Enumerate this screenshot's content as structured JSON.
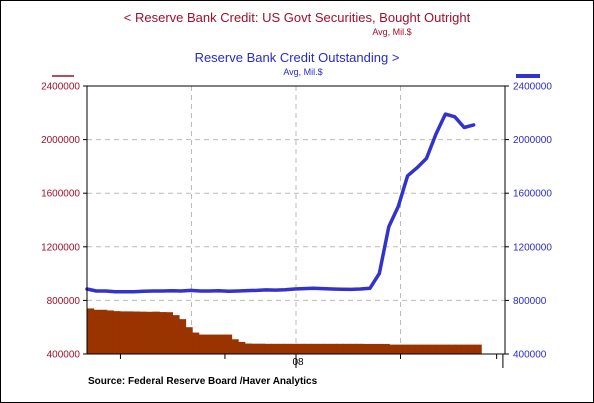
{
  "chart_data": {
    "type": "bar+line",
    "titles": {
      "left_title": "<  Reserve Bank Credit: US Govt Securities, Bought Outright",
      "left_units": "Avg, Mil.$",
      "right_title": "Reserve Bank Credit Outstanding  >",
      "right_units": "Avg, Mil.$"
    },
    "y_axis": {
      "min": 400000,
      "max": 2400000,
      "ticks": [
        400000,
        800000,
        1200000,
        1600000,
        2000000,
        2400000
      ],
      "tick_labels": [
        "400000",
        "800000",
        "1200000",
        "1600000",
        "2000000",
        "2400000"
      ]
    },
    "x_axis": {
      "label_text": "08",
      "label_position": 0.5
    },
    "grid": true,
    "series": [
      {
        "name": "Reserve Bank Credit: US Govt Securities, Bought Outright",
        "axis": "left",
        "type": "bar",
        "color": "#993300",
        "values": [
          740000,
          730000,
          730000,
          725000,
          720000,
          718000,
          718000,
          717000,
          716000,
          715000,
          716000,
          713000,
          712000,
          690000,
          660000,
          600000,
          560000,
          545000,
          545000,
          545000,
          545000,
          545000,
          510000,
          490000,
          478000,
          477000,
          477000,
          476000,
          476000,
          476000,
          476000,
          476000,
          476000,
          476000,
          476000,
          476000,
          476000,
          476000,
          476000,
          476000,
          476000,
          476000,
          475000,
          475000,
          475000,
          475000,
          470000,
          470000,
          470000,
          470000,
          470000,
          470000,
          470000,
          470000,
          470000,
          470000,
          470000,
          470000,
          470000,
          470000
        ]
      },
      {
        "name": "Reserve Bank Credit Outstanding",
        "axis": "right",
        "type": "line",
        "color": "#3333cc",
        "values": [
          885000,
          870000,
          870000,
          865000,
          865000,
          865000,
          868000,
          870000,
          870000,
          872000,
          870000,
          875000,
          870000,
          870000,
          872000,
          868000,
          870000,
          873000,
          875000,
          878000,
          877000,
          880000,
          885000,
          888000,
          890000,
          888000,
          885000,
          883000,
          882000,
          885000,
          890000,
          1000000,
          1350000,
          1500000,
          1730000,
          1790000,
          1860000,
          2040000,
          2190000,
          2170000,
          2090000,
          2110000
        ]
      }
    ]
  },
  "source": "Source:  Federal Reserve Board /Haver Analytics"
}
